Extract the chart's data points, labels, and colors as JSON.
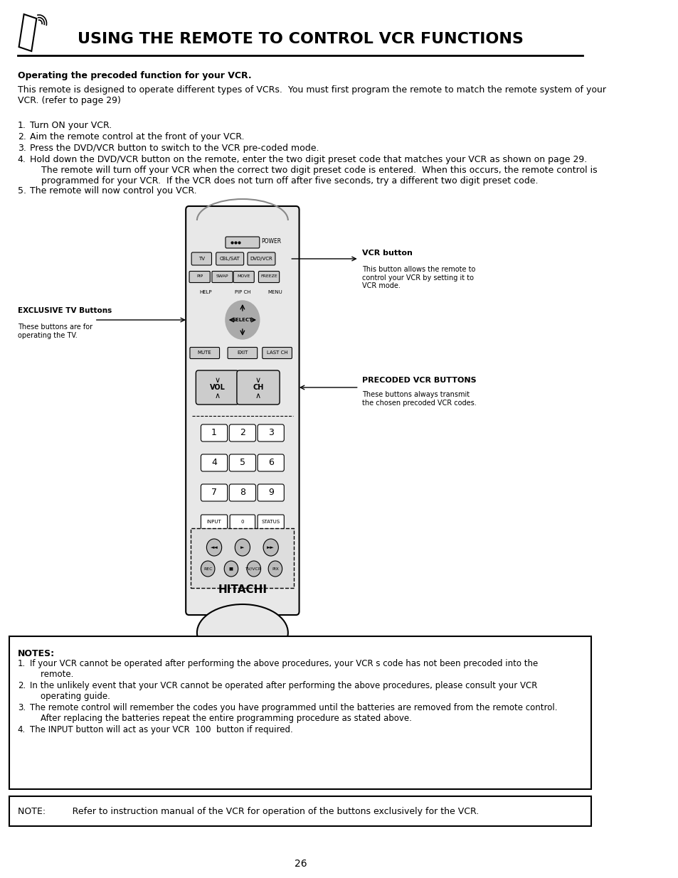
{
  "title": "USING THE REMOTE TO CONTROL VCR FUNCTIONS",
  "background_color": "#ffffff",
  "text_color": "#000000",
  "page_number": "26",
  "bold_heading": "Operating the precoded function for your VCR.",
  "intro_text": "This remote is designed to operate different types of VCRs.  You must first program the remote to match the remote system of your\nVCR. (refer to page 29)",
  "steps": [
    "Turn ON your VCR.",
    "Aim the remote control at the front of your VCR.",
    "Press the DVD/VCR button to switch to the VCR pre-coded mode.",
    "Hold down the DVD/VCR button on the remote, enter the two digit preset code that matches your VCR as shown on page 29.\n    The remote will turn off your VCR when the correct two digit preset code is entered.  When this occurs, the remote control is\n    programmed for your VCR.  If the VCR does not turn off after five seconds, try a different two digit preset code.",
    "The remote will now control you VCR."
  ],
  "notes_heading": "NOTES:",
  "notes": [
    "If your VCR cannot be operated after performing the above procedures, your VCR s code has not been precoded into the\n    remote.",
    "In the unlikely event that your VCR cannot be operated after performing the above procedures, please consult your VCR\n    operating guide.",
    "The remote control will remember the codes you have programmed until the batteries are removed from the remote control.\n    After replacing the batteries repeat the entire programming procedure as stated above.",
    "The INPUT button will act as your VCR  100  button if required."
  ],
  "note_single": "NOTE:   Refer to instruction manual of the VCR for operation of the buttons exclusively for the VCR.",
  "vcr_button_label": "VCR button",
  "vcr_button_desc": "This button allows the remote to\ncontrol your VCR by setting it to\nVCR mode.",
  "exclusive_tv_label": "EXCLUSIVE TV Buttons",
  "exclusive_tv_desc": "These buttons are for\noperating the TV.",
  "precoded_label": "PRECODED VCR BUTTONS",
  "precoded_desc": "These buttons always transmit\nthe chosen precoded VCR codes."
}
